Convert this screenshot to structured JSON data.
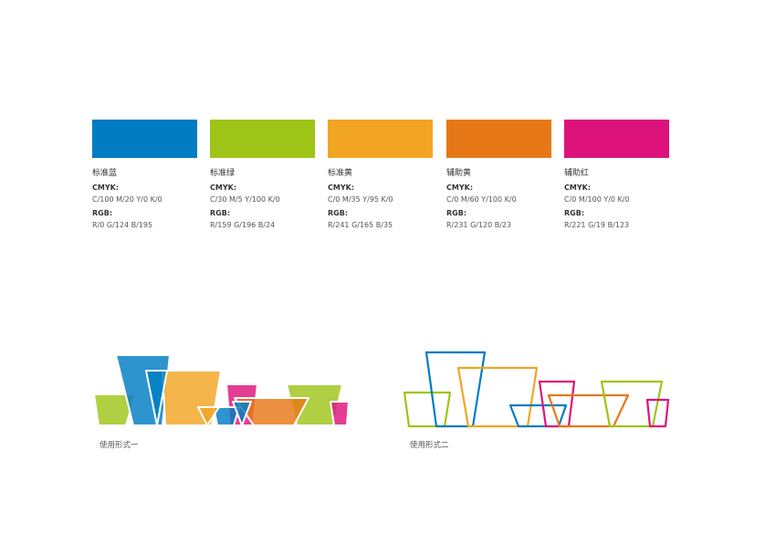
{
  "swatches": [
    {
      "name": "标准蓝",
      "cmyk_label": "CMYK:",
      "cmyk": "C/100  M/20  Y/0  K/0",
      "rgb_label": "RGB:",
      "rgb": "R/0  G/124  B/195",
      "color": "#007CC3"
    },
    {
      "name": "标准绿",
      "cmyk_label": "CMYK:",
      "cmyk": "C/30  M/5  Y/100  K/0",
      "rgb_label": "RGB:",
      "rgb": "R/159  G/196  B/24",
      "color": "#9FC418"
    },
    {
      "name": "标准黄",
      "cmyk_label": "CMYK:",
      "cmyk": "C/0  M/35  Y/95  K/0",
      "rgb_label": "RGB:",
      "rgb": "R/241  G/165  B/35",
      "color": "#F1A523"
    },
    {
      "name": "辅助黄",
      "cmyk_label": "CMYK:",
      "cmyk": "C/0  M/60  Y/100  K/0",
      "rgb_label": "RGB:",
      "rgb": "R/231  G/120  B/23",
      "color": "#E77817"
    },
    {
      "name": "辅助红",
      "cmyk_label": "CMYK:",
      "cmyk": "C/0  M/100  Y/0  K/0",
      "rgb_label": "RGB:",
      "rgb": "R/221  G/19  B/123",
      "color": "#DD137B"
    }
  ],
  "usage": {
    "form1": "使用形式一",
    "form2": "使用形式二"
  }
}
